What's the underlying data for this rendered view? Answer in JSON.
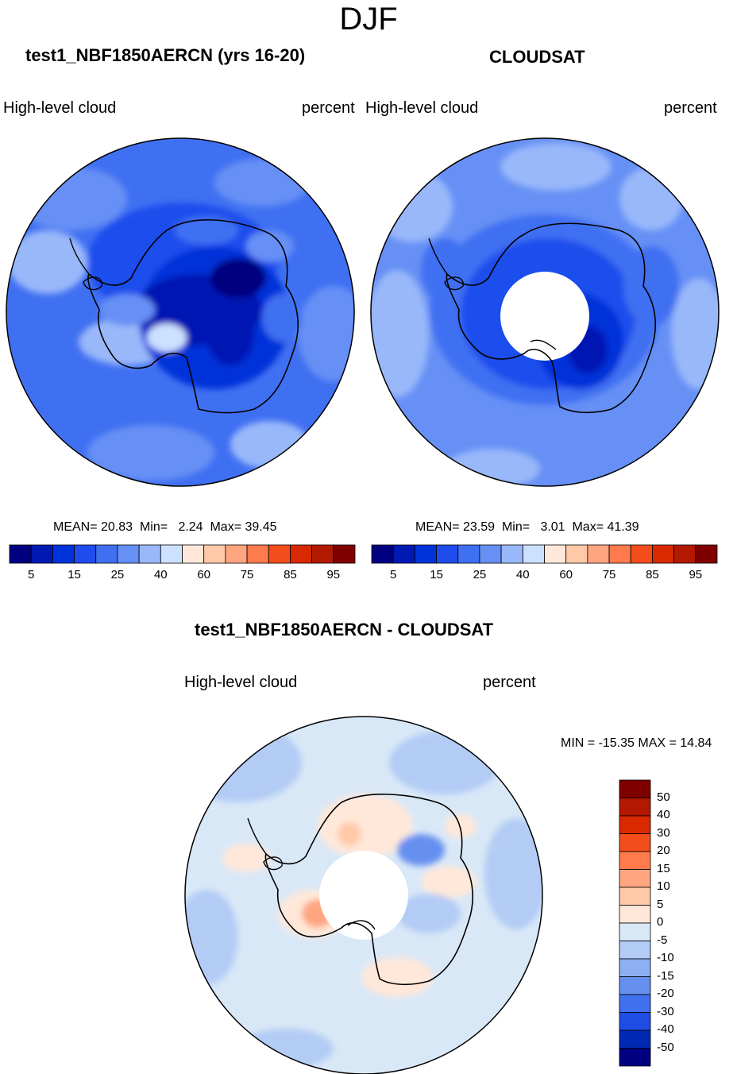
{
  "figure": {
    "title": "DJF",
    "left_panel": {
      "title": "test1_NBF1850AERCN (yrs 16-20)",
      "left_label": "High-level cloud",
      "right_label": "percent",
      "stats": {
        "mean_label": "MEAN=",
        "mean": "20.83",
        "min_label": "Min=",
        "min": "2.24",
        "max_label": "Max=",
        "max": "39.45"
      }
    },
    "right_panel": {
      "title": "CLOUDSAT",
      "left_label": "High-level cloud",
      "right_label": "percent",
      "stats": {
        "mean_label": "MEAN=",
        "mean": "23.59",
        "min_label": "Min=",
        "min": "3.01",
        "max_label": "Max=",
        "max": "41.39"
      }
    },
    "diff_panel": {
      "title": "test1_NBF1850AERCN - CLOUDSAT",
      "left_label": "High-level cloud",
      "right_label": "percent",
      "minmax": "MIN = -15.35 MAX =  14.84"
    }
  },
  "chart_data": [
    {
      "type": "heatmap",
      "projection": "south-polar-stereographic",
      "title": "test1_NBF1850AERCN (yrs 16-20)",
      "variable": "High-level cloud",
      "units": "percent",
      "mean": 20.83,
      "min": 2.24,
      "max": 39.45,
      "colorbar": {
        "orientation": "horizontal",
        "levels": [
          5,
          10,
          15,
          20,
          25,
          30,
          40,
          50,
          60,
          70,
          75,
          80,
          85,
          90,
          95
        ],
        "tick_labels": [
          "5",
          "15",
          "25",
          "40",
          "60",
          "75",
          "85",
          "95"
        ],
        "colors": [
          "#000080",
          "#0019b3",
          "#0033d9",
          "#1f4ded",
          "#4070f2",
          "#6690f5",
          "#99b8fa",
          "#cce0ff",
          "#ffe8d9",
          "#ffc9a8",
          "#ffa580",
          "#ff7a4d",
          "#f24d1a",
          "#d92900",
          "#b31900",
          "#800000"
        ]
      }
    },
    {
      "type": "heatmap",
      "projection": "south-polar-stereographic",
      "title": "CLOUDSAT",
      "variable": "High-level cloud",
      "units": "percent",
      "mean": 23.59,
      "min": 3.01,
      "max": 41.39,
      "missing_region": "pole",
      "colorbar": {
        "orientation": "horizontal",
        "levels": [
          5,
          10,
          15,
          20,
          25,
          30,
          40,
          50,
          60,
          70,
          75,
          80,
          85,
          90,
          95
        ],
        "tick_labels": [
          "5",
          "15",
          "25",
          "40",
          "60",
          "75",
          "85",
          "95"
        ],
        "colors": [
          "#000080",
          "#0019b3",
          "#0033d9",
          "#1f4ded",
          "#4070f2",
          "#6690f5",
          "#99b8fa",
          "#cce0ff",
          "#ffe8d9",
          "#ffc9a8",
          "#ffa580",
          "#ff7a4d",
          "#f24d1a",
          "#d92900",
          "#b31900",
          "#800000"
        ]
      }
    },
    {
      "type": "heatmap",
      "projection": "south-polar-stereographic",
      "title": "test1_NBF1850AERCN - CLOUDSAT",
      "variable": "High-level cloud",
      "units": "percent",
      "min": -15.35,
      "max": 14.84,
      "missing_region": "pole",
      "colorbar": {
        "orientation": "vertical",
        "levels": [
          50,
          40,
          30,
          20,
          15,
          10,
          5,
          0,
          -5,
          -10,
          -15,
          -20,
          -30,
          -40,
          -50
        ],
        "tick_labels": [
          "50",
          "40",
          "30",
          "20",
          "15",
          "10",
          "5",
          "0",
          "-5",
          "-10",
          "-15",
          "-20",
          "-30",
          "-40",
          "-50"
        ],
        "colors": [
          "#800000",
          "#b31900",
          "#d92900",
          "#f24d1a",
          "#ff7a4d",
          "#ffa580",
          "#ffc9a8",
          "#ffe8d9",
          "#d9e8f7",
          "#b3ccf5",
          "#8cb0f2",
          "#6690f0",
          "#4070ed",
          "#1f4de3",
          "#0029b3",
          "#000080"
        ]
      }
    }
  ]
}
